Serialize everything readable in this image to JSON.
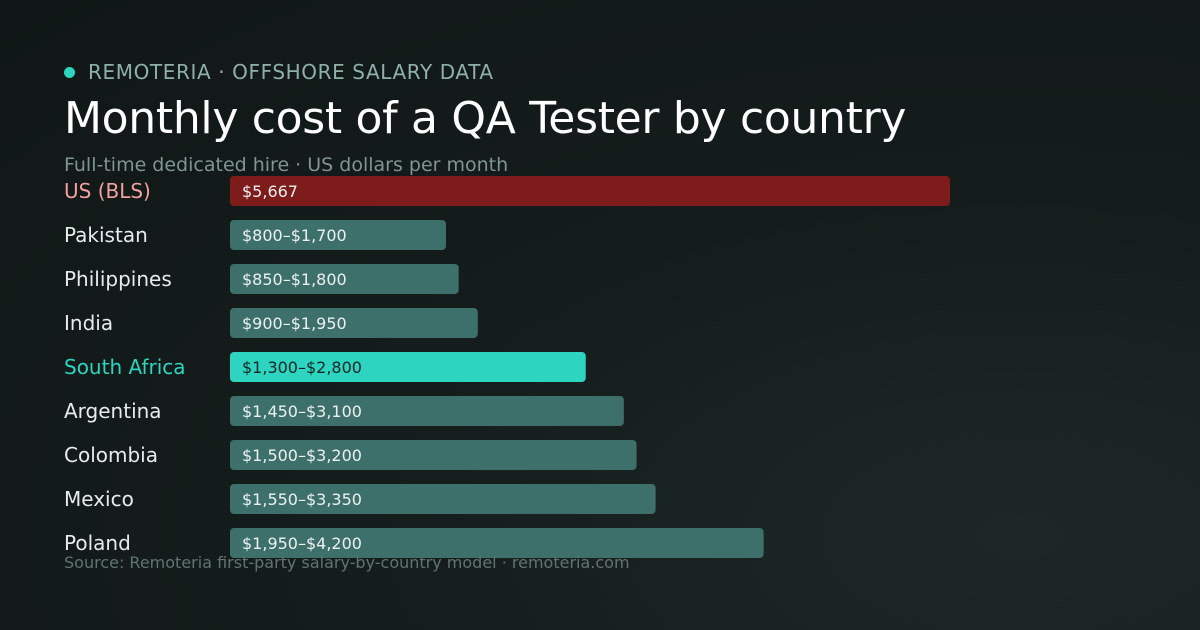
{
  "header": {
    "brand": "REMOTERIA · OFFSHORE SALARY DATA",
    "title": "Monthly cost of a QA Tester by country",
    "subtitle": "Full-time dedicated hire · US dollars per month"
  },
  "footer": {
    "source": "Source: Remoteria first-party salary-by-country model · remoteria.com"
  },
  "colors": {
    "background": "#121a19",
    "accent": "#2dd4bf",
    "us_bar": "#7e1c1c",
    "default_bar": "#3e706b"
  },
  "chart_data": {
    "type": "bar",
    "orientation": "horizontal",
    "title": "Monthly cost of a QA Tester by country",
    "subtitle": "Full-time dedicated hire · US dollars per month",
    "grid": false,
    "categories": [
      "US (BLS)",
      "Pakistan",
      "Philippines",
      "India",
      "South Africa",
      "Argentina",
      "Colombia",
      "Mexico",
      "Poland"
    ],
    "value_labels": [
      "$5,667",
      "$800–$1,700",
      "$850–$1,800",
      "$900–$1,950",
      "$1,300–$2,800",
      "$1,450–$3,100",
      "$1,500–$3,200",
      "$1,550–$3,350",
      "$1,950–$4,200"
    ],
    "values": [
      5667,
      1700,
      1800,
      1950,
      2800,
      3100,
      3200,
      3350,
      4200
    ],
    "ranges": [
      [
        5667,
        5667
      ],
      [
        800,
        1700
      ],
      [
        850,
        1800
      ],
      [
        900,
        1950
      ],
      [
        1300,
        2800
      ],
      [
        1450,
        3100
      ],
      [
        1500,
        3200
      ],
      [
        1550,
        3350
      ],
      [
        1950,
        4200
      ]
    ],
    "highlight": {
      "baseline": "US (BLS)",
      "featured": "South Africa"
    },
    "xlim": [
      0,
      5667
    ]
  }
}
